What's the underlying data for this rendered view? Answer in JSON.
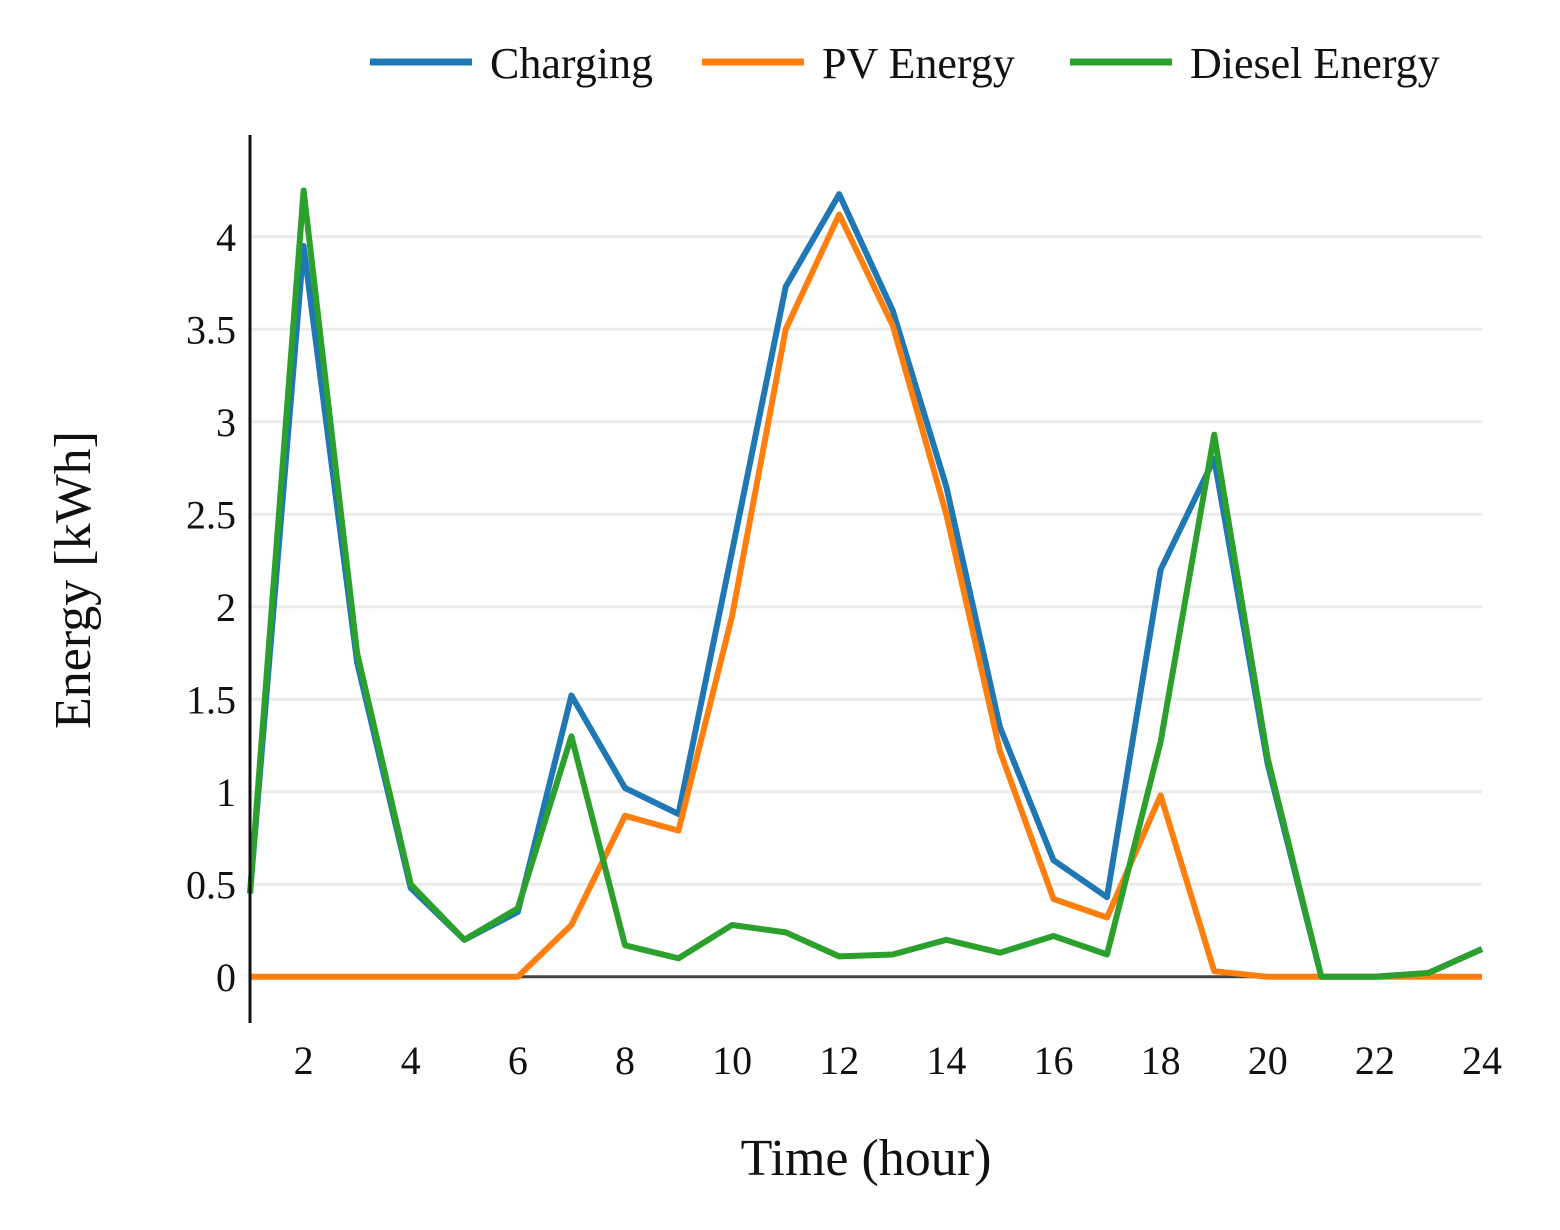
{
  "chart_data": {
    "type": "line",
    "title": "",
    "xlabel": "Time (hour)",
    "ylabel": "Energy [kWh]",
    "xlim": [
      1,
      24
    ],
    "ylim": [
      -0.25,
      4.55
    ],
    "x": [
      1,
      2,
      3,
      4,
      5,
      6,
      7,
      8,
      9,
      10,
      11,
      12,
      13,
      14,
      15,
      16,
      17,
      18,
      19,
      20,
      21,
      22,
      23,
      24
    ],
    "x_ticks": [
      2,
      4,
      6,
      8,
      10,
      12,
      14,
      16,
      18,
      20,
      22,
      24
    ],
    "y_ticks": [
      0,
      0.5,
      1,
      1.5,
      2,
      2.5,
      3,
      3.5,
      4
    ],
    "y_tick_labels": [
      "0",
      "0.5",
      "1",
      "1.5",
      "2",
      "2.5",
      "3",
      "3.5",
      "4"
    ],
    "grid": true,
    "legend_position": "top",
    "series": [
      {
        "name": "Charging",
        "color": "#1f77b4",
        "values": [
          0.45,
          3.95,
          1.7,
          0.48,
          0.2,
          0.35,
          1.52,
          1.02,
          0.88,
          2.3,
          3.73,
          4.23,
          3.6,
          2.65,
          1.35,
          0.63,
          0.43,
          2.2,
          2.8,
          1.15,
          0.0,
          0.0,
          0.02,
          0.15
        ]
      },
      {
        "name": "PV Energy",
        "color": "#ff7f0e",
        "values": [
          0,
          0,
          0,
          0,
          0,
          0,
          0.28,
          0.87,
          0.79,
          1.95,
          3.5,
          4.12,
          3.52,
          2.5,
          1.22,
          0.42,
          0.32,
          0.98,
          0.03,
          0,
          0,
          0,
          0,
          0
        ]
      },
      {
        "name": "Diesel Energy",
        "color": "#2ca02c",
        "values": [
          0.45,
          4.25,
          1.75,
          0.5,
          0.2,
          0.37,
          1.3,
          0.17,
          0.1,
          0.28,
          0.24,
          0.11,
          0.12,
          0.2,
          0.13,
          0.22,
          0.12,
          1.27,
          2.93,
          1.18,
          0.0,
          0.0,
          0.02,
          0.15
        ]
      }
    ]
  }
}
